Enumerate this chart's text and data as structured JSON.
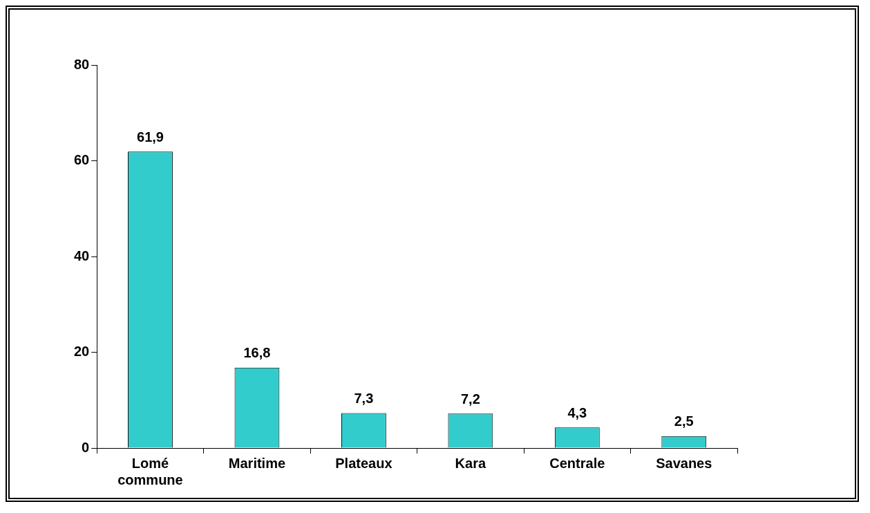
{
  "chart_data": {
    "type": "bar",
    "categories": [
      "Lomé commune",
      "Maritime",
      "Plateaux",
      "Kara",
      "Centrale",
      "Savanes"
    ],
    "values": [
      61.9,
      16.8,
      7.3,
      7.2,
      4.3,
      2.5
    ],
    "value_labels": [
      "61,9",
      "16,8",
      "7,3",
      "7,2",
      "4,3",
      "2,5"
    ],
    "color": "#33cccc",
    "ylim": [
      0,
      80
    ],
    "yticks": [
      0,
      20,
      40,
      60,
      80
    ],
    "grid": false,
    "legend": false
  }
}
